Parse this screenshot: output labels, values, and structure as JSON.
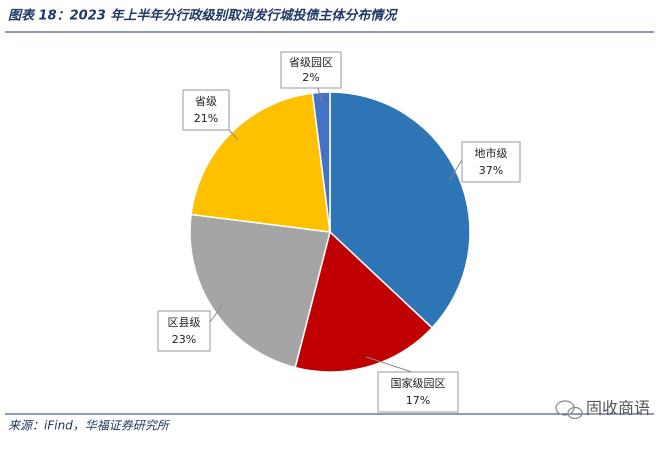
{
  "chart_data": {
    "type": "pie",
    "title": "图表 18：2023 年上半年分行政级别取消发行城投债主体分布情况",
    "source": "来源：iFind，华福证券研究所",
    "watermark": "固收商语",
    "categories": [
      "地市级",
      "国家级园区",
      "区县级",
      "省级",
      "省级园区"
    ],
    "values": [
      37,
      17,
      23,
      21,
      2
    ],
    "value_labels": [
      "37%",
      "17%",
      "23%",
      "21%",
      "2%"
    ],
    "colors": [
      "#2e75b6",
      "#c00000",
      "#a5a5a5",
      "#ffc000",
      "#4472c4"
    ]
  }
}
